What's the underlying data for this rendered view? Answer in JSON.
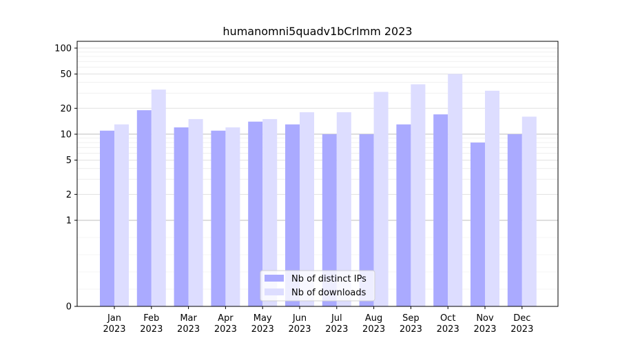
{
  "chart_data": {
    "type": "bar",
    "title": "humanomni5quadv1bCrlmm 2023",
    "xlabel": "",
    "ylabel": "",
    "y_scale": "symlog",
    "ylim": [
      0,
      120
    ],
    "y_ticks": [
      0,
      1,
      2,
      5,
      10,
      20,
      50,
      100
    ],
    "grid": true,
    "legend_position": "lower-center",
    "categories": [
      {
        "month": "Jan",
        "year": "2023"
      },
      {
        "month": "Feb",
        "year": "2023"
      },
      {
        "month": "Mar",
        "year": "2023"
      },
      {
        "month": "Apr",
        "year": "2023"
      },
      {
        "month": "May",
        "year": "2023"
      },
      {
        "month": "Jun",
        "year": "2023"
      },
      {
        "month": "Jul",
        "year": "2023"
      },
      {
        "month": "Aug",
        "year": "2023"
      },
      {
        "month": "Sep",
        "year": "2023"
      },
      {
        "month": "Oct",
        "year": "2023"
      },
      {
        "month": "Nov",
        "year": "2023"
      },
      {
        "month": "Dec",
        "year": "2023"
      }
    ],
    "series": [
      {
        "name": "Nb of distinct IPs",
        "color": "#aaaaff",
        "values": [
          11,
          19,
          12,
          11,
          14,
          13,
          10,
          10,
          13,
          17,
          8,
          10
        ]
      },
      {
        "name": "Nb of downloads",
        "color": "#ddddff",
        "values": [
          13,
          33,
          15,
          12,
          15,
          18,
          18,
          31,
          38,
          50,
          32,
          16
        ]
      }
    ]
  }
}
